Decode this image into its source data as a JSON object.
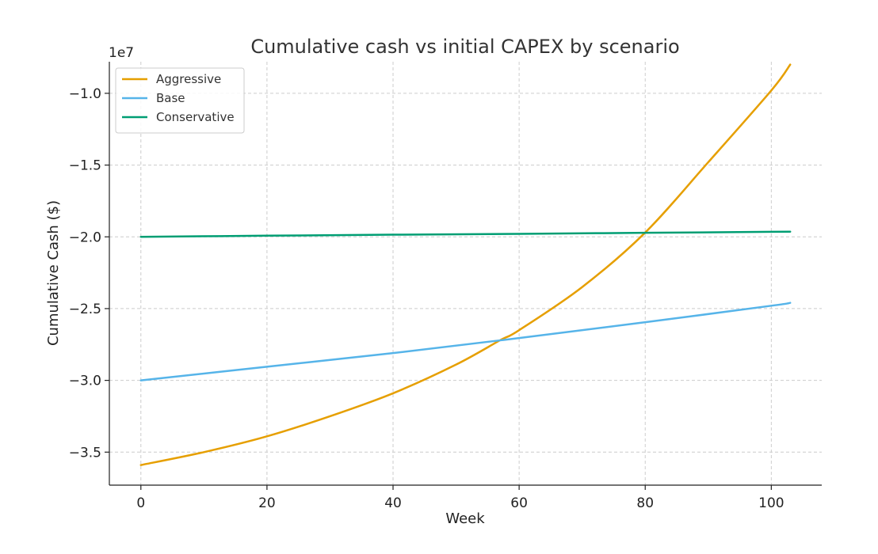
{
  "chart_data": {
    "type": "line",
    "title": "Cumulative cash vs initial CAPEX by scenario",
    "xlabel": "Week",
    "ylabel": "Cumulative Cash ($)",
    "y_offset_label": "1e7",
    "xlim": [
      -5,
      108
    ],
    "ylim": [
      -3.73,
      -0.78
    ],
    "y_scale_note_units": "1e7",
    "x_ticks": [
      0,
      20,
      40,
      60,
      80,
      100
    ],
    "x_tick_labels": [
      "0",
      "20",
      "40",
      "60",
      "80",
      "100"
    ],
    "y_ticks": [
      -3.5,
      -3.0,
      -2.5,
      -2.0,
      -1.5,
      -1.0
    ],
    "y_tick_labels": [
      "−3.5",
      "−3.0",
      "−2.5",
      "−2.0",
      "−1.5",
      "−1.0"
    ],
    "grid": true,
    "legend_position": "top-left",
    "series": [
      {
        "name": "Aggressive",
        "color": "#E69F00",
        "x": [
          0,
          10,
          20,
          30,
          40,
          50,
          57,
          60,
          70,
          80,
          90,
          100,
          103
        ],
        "values": [
          -3.59,
          -3.5,
          -3.39,
          -3.25,
          -3.09,
          -2.89,
          -2.72,
          -2.65,
          -2.35,
          -1.97,
          -1.48,
          -0.98,
          -0.8
        ]
      },
      {
        "name": "Base",
        "color": "#56B4E9",
        "x": [
          0,
          20,
          40,
          60,
          80,
          100,
          103
        ],
        "values": [
          -3.0,
          -2.905,
          -2.81,
          -2.705,
          -2.595,
          -2.48,
          -2.46
        ]
      },
      {
        "name": "Conservative",
        "color": "#009E73",
        "x": [
          0,
          20,
          40,
          60,
          80,
          100,
          103
        ],
        "values": [
          -2.0,
          -1.992,
          -1.985,
          -1.979,
          -1.972,
          -1.965,
          -1.964
        ]
      }
    ]
  }
}
